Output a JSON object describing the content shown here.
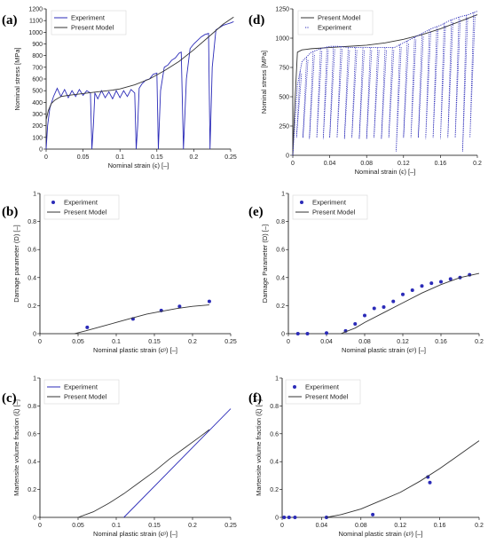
{
  "colors": {
    "experiment": "#2b2bb8",
    "model": "#333333",
    "axis": "#000000",
    "grid": "#dddddd"
  },
  "chart_data": [
    {
      "panel": "(a)",
      "type": "line",
      "xlabel": "Nominal strain (ϵ) [–]",
      "ylabel": "Nominal stress [MPa]",
      "xlim": [
        0,
        0.25
      ],
      "ylim": [
        0,
        1200
      ],
      "xticks": [
        0,
        0.05,
        0.1,
        0.15,
        0.2,
        0.25
      ],
      "xticklabels": [
        "0",
        "0.05",
        "0.1",
        "0.15",
        "0.2",
        "0.25"
      ],
      "yticks": [
        0,
        100,
        200,
        300,
        400,
        500,
        600,
        700,
        800,
        900,
        1000,
        1100,
        1200
      ],
      "yticklabels": [
        "0",
        "100",
        "200",
        "300",
        "400",
        "500",
        "600",
        "700",
        "800",
        "900",
        "1000",
        "1100",
        "1200"
      ],
      "legend_position": "top-left",
      "series": [
        {
          "name": "Experiment",
          "style": "line",
          "x": [
            0,
            0.002,
            0.005,
            0.01,
            0.015,
            0.02,
            0.025,
            0.03,
            0.035,
            0.04,
            0.045,
            0.05,
            0.055,
            0.06,
            0.062,
            0.064,
            0.066,
            0.07,
            0.075,
            0.08,
            0.085,
            0.09,
            0.095,
            0.1,
            0.105,
            0.11,
            0.115,
            0.12,
            0.122,
            0.124,
            0.126,
            0.13,
            0.135,
            0.14,
            0.145,
            0.15,
            0.152,
            0.155,
            0.16,
            0.165,
            0.17,
            0.175,
            0.18,
            0.183,
            0.186,
            0.19,
            0.195,
            0.2,
            0.205,
            0.21,
            0.215,
            0.22,
            0.222,
            0.225,
            0.23,
            0.235,
            0.24,
            0.245,
            0.25,
            0.254
          ],
          "y": [
            0,
            200,
            350,
            450,
            520,
            450,
            510,
            440,
            500,
            450,
            510,
            460,
            500,
            480,
            0,
            200,
            480,
            430,
            500,
            440,
            490,
            430,
            500,
            440,
            500,
            450,
            510,
            480,
            0,
            200,
            520,
            560,
            590,
            600,
            640,
            650,
            0,
            500,
            700,
            720,
            760,
            780,
            820,
            830,
            0,
            600,
            860,
            900,
            930,
            960,
            980,
            990,
            0,
            700,
            1020,
            1040,
            1060,
            1070,
            1080,
            1090
          ]
        },
        {
          "name": "Present Model",
          "style": "line",
          "x": [
            0,
            0.003,
            0.007,
            0.012,
            0.02,
            0.03,
            0.05,
            0.07,
            0.09,
            0.1,
            0.12,
            0.14,
            0.16,
            0.18,
            0.2,
            0.22,
            0.24,
            0.254
          ],
          "y": [
            250,
            330,
            390,
            420,
            450,
            460,
            475,
            490,
            505,
            515,
            550,
            600,
            670,
            750,
            850,
            960,
            1070,
            1130
          ]
        }
      ]
    },
    {
      "panel": "(d)",
      "type": "line",
      "xlabel": "Nominal strain (ϵ) [–]",
      "ylabel": "Nominal stress [MPa]",
      "xlim": [
        0,
        0.2
      ],
      "ylim": [
        0,
        1250
      ],
      "xticks": [
        0,
        0.04,
        0.08,
        0.12,
        0.16,
        0.2
      ],
      "xticklabels": [
        "0",
        "0.04",
        "0.08",
        "0.12",
        "0.16",
        "0.2"
      ],
      "yticks": [
        0,
        250,
        500,
        750,
        1000,
        1250
      ],
      "yticklabels": [
        "0",
        "250",
        "500",
        "750",
        "1000",
        "1250"
      ],
      "legend_position": "top-left",
      "series": [
        {
          "name": "Present Model",
          "style": "line",
          "x": [
            0,
            0.002,
            0.005,
            0.01,
            0.015,
            0.02,
            0.04,
            0.06,
            0.08,
            0.1,
            0.12,
            0.14,
            0.16,
            0.18,
            0.2
          ],
          "y": [
            0,
            400,
            880,
            900,
            905,
            910,
            920,
            930,
            940,
            960,
            990,
            1030,
            1080,
            1140,
            1200
          ]
        },
        {
          "name": "Experiment",
          "style": "dotted",
          "x": [
            0,
            0.005,
            0.01,
            0.02,
            0.03,
            0.04,
            0.05,
            0.06,
            0.07,
            0.08,
            0.09,
            0.1,
            0.11,
            0.12,
            0.13,
            0.14,
            0.15,
            0.16,
            0.17,
            0.18,
            0.19,
            0.2
          ],
          "y": [
            0,
            600,
            800,
            880,
            910,
            930,
            930,
            920,
            920,
            920,
            920,
            920,
            920,
            960,
            1000,
            1040,
            1080,
            1110,
            1150,
            1180,
            1200,
            1230
          ],
          "unload_at": [
            0.008,
            0.015,
            0.022,
            0.03,
            0.037,
            0.044,
            0.052,
            0.06,
            0.068,
            0.076,
            0.084,
            0.092,
            0.1,
            0.108,
            0.116,
            0.124,
            0.132,
            0.14,
            0.148,
            0.156,
            0.164,
            0.172,
            0.18,
            0.188,
            0.196
          ],
          "unload_min": [
            150,
            150,
            140,
            150,
            140,
            150,
            150,
            140,
            150,
            140,
            140,
            150,
            140,
            150,
            30,
            150,
            150,
            150,
            140,
            150,
            140,
            150,
            150,
            30,
            150
          ]
        }
      ]
    },
    {
      "panel": "(b)",
      "type": "scatter",
      "xlabel": "Nominal plastic strain (ϵᵖ) [–]",
      "ylabel": "Damage parameter (D) [–]",
      "xlim": [
        0,
        0.25
      ],
      "ylim": [
        0,
        1
      ],
      "xticks": [
        0,
        0.05,
        0.1,
        0.15,
        0.2,
        0.25
      ],
      "xticklabels": [
        "0",
        "0.05",
        "0.1",
        "0.15",
        "0.2",
        "0.25"
      ],
      "yticks": [
        0,
        0.2,
        0.4,
        0.6,
        0.8,
        1
      ],
      "yticklabels": [
        "0",
        "0.2",
        "0.4",
        "0.6",
        "0.8",
        "1"
      ],
      "legend_position": "top-left",
      "series": [
        {
          "name": "Experiment",
          "style": "marker",
          "x": [
            0.062,
            0.122,
            0.159,
            0.183,
            0.222
          ],
          "y": [
            0.045,
            0.105,
            0.165,
            0.195,
            0.23
          ]
        },
        {
          "name": "Present Model",
          "style": "line",
          "x": [
            0.045,
            0.06,
            0.08,
            0.1,
            0.12,
            0.14,
            0.16,
            0.18,
            0.2,
            0.222
          ],
          "y": [
            0,
            0.02,
            0.05,
            0.08,
            0.11,
            0.14,
            0.16,
            0.18,
            0.195,
            0.205
          ]
        }
      ]
    },
    {
      "panel": "(e)",
      "type": "scatter",
      "xlabel": "Nominal plastic strain (ϵᵖ) [–]",
      "ylabel": "Damage Parameter (D) [–]",
      "xlim": [
        0,
        0.2
      ],
      "ylim": [
        0,
        1
      ],
      "xticks": [
        0,
        0.04,
        0.08,
        0.12,
        0.16,
        0.2
      ],
      "xticklabels": [
        "0",
        "0.04",
        "0.08",
        "0.12",
        "0.16",
        "0.2"
      ],
      "yticks": [
        0,
        0.2,
        0.4,
        0.6,
        0.8,
        1
      ],
      "yticklabels": [
        "0",
        "0.2",
        "0.4",
        "0.6",
        "0.8",
        "1"
      ],
      "legend_position": "top-left",
      "series": [
        {
          "name": "Experiment",
          "style": "marker",
          "x": [
            0.01,
            0.02,
            0.04,
            0.06,
            0.07,
            0.08,
            0.09,
            0.1,
            0.11,
            0.12,
            0.13,
            0.14,
            0.15,
            0.16,
            0.17,
            0.18,
            0.19
          ],
          "y": [
            0,
            0,
            0.005,
            0.02,
            0.07,
            0.13,
            0.18,
            0.19,
            0.23,
            0.28,
            0.31,
            0.34,
            0.36,
            0.37,
            0.39,
            0.4,
            0.42
          ]
        },
        {
          "name": "Present Model",
          "style": "line",
          "x": [
            0.055,
            0.07,
            0.08,
            0.1,
            0.12,
            0.14,
            0.16,
            0.18,
            0.2
          ],
          "y": [
            0,
            0.04,
            0.08,
            0.15,
            0.22,
            0.29,
            0.35,
            0.4,
            0.43
          ]
        }
      ]
    },
    {
      "panel": "(c)",
      "type": "line",
      "xlabel": "Nominal plastic strain (ϵᵖ) [–]",
      "ylabel": "Martensite volume fraction (ξ) [–]",
      "xlim": [
        0,
        0.25
      ],
      "ylim": [
        0,
        1
      ],
      "xticks": [
        0,
        0.05,
        0.1,
        0.15,
        0.2,
        0.25
      ],
      "xticklabels": [
        "0",
        "0.05",
        "0.1",
        "0.15",
        "0.2",
        "0.25"
      ],
      "yticks": [
        0,
        0.2,
        0.4,
        0.6,
        0.8,
        1
      ],
      "yticklabels": [
        "0",
        "0.2",
        "0.4",
        "0.6",
        "0.8",
        "1"
      ],
      "legend_position": "top-left",
      "series": [
        {
          "name": "Experiment",
          "style": "line",
          "x": [
            0.11,
            0.25
          ],
          "y": [
            0,
            0.78
          ]
        },
        {
          "name": "Present Model",
          "style": "line",
          "x": [
            0.05,
            0.07,
            0.09,
            0.11,
            0.13,
            0.15,
            0.17,
            0.19,
            0.21,
            0.222
          ],
          "y": [
            0,
            0.04,
            0.1,
            0.17,
            0.25,
            0.33,
            0.42,
            0.5,
            0.58,
            0.63
          ]
        }
      ]
    },
    {
      "panel": "(f)",
      "type": "scatter",
      "xlabel": "Nominal plastic strain (ϵᵖ) [–]",
      "ylabel": "Martensite volume fraction (ξ) [–]",
      "xlim": [
        0,
        0.2
      ],
      "ylim": [
        0,
        1
      ],
      "xticks": [
        0,
        0.04,
        0.08,
        0.12,
        0.16,
        0.2
      ],
      "xticklabels": [
        "0",
        "0.04",
        "0.08",
        "0.12",
        "0.16",
        "0.2"
      ],
      "yticks": [
        0,
        0.2,
        0.4,
        0.6,
        0.8,
        1
      ],
      "yticklabels": [
        "0",
        "0.2",
        "0.4",
        "0.6",
        "0.8",
        "1"
      ],
      "legend_position": "top-left",
      "series": [
        {
          "name": "Experiment",
          "style": "marker",
          "x": [
            0.002,
            0.007,
            0.013,
            0.045,
            0.092,
            0.148,
            0.15
          ],
          "y": [
            0,
            0,
            0,
            0,
            0.02,
            0.29,
            0.25
          ]
        },
        {
          "name": "Present Model",
          "style": "line",
          "x": [
            0.045,
            0.06,
            0.08,
            0.1,
            0.12,
            0.14,
            0.16,
            0.18,
            0.2
          ],
          "y": [
            0,
            0.02,
            0.06,
            0.12,
            0.18,
            0.26,
            0.35,
            0.45,
            0.55
          ]
        }
      ]
    }
  ]
}
